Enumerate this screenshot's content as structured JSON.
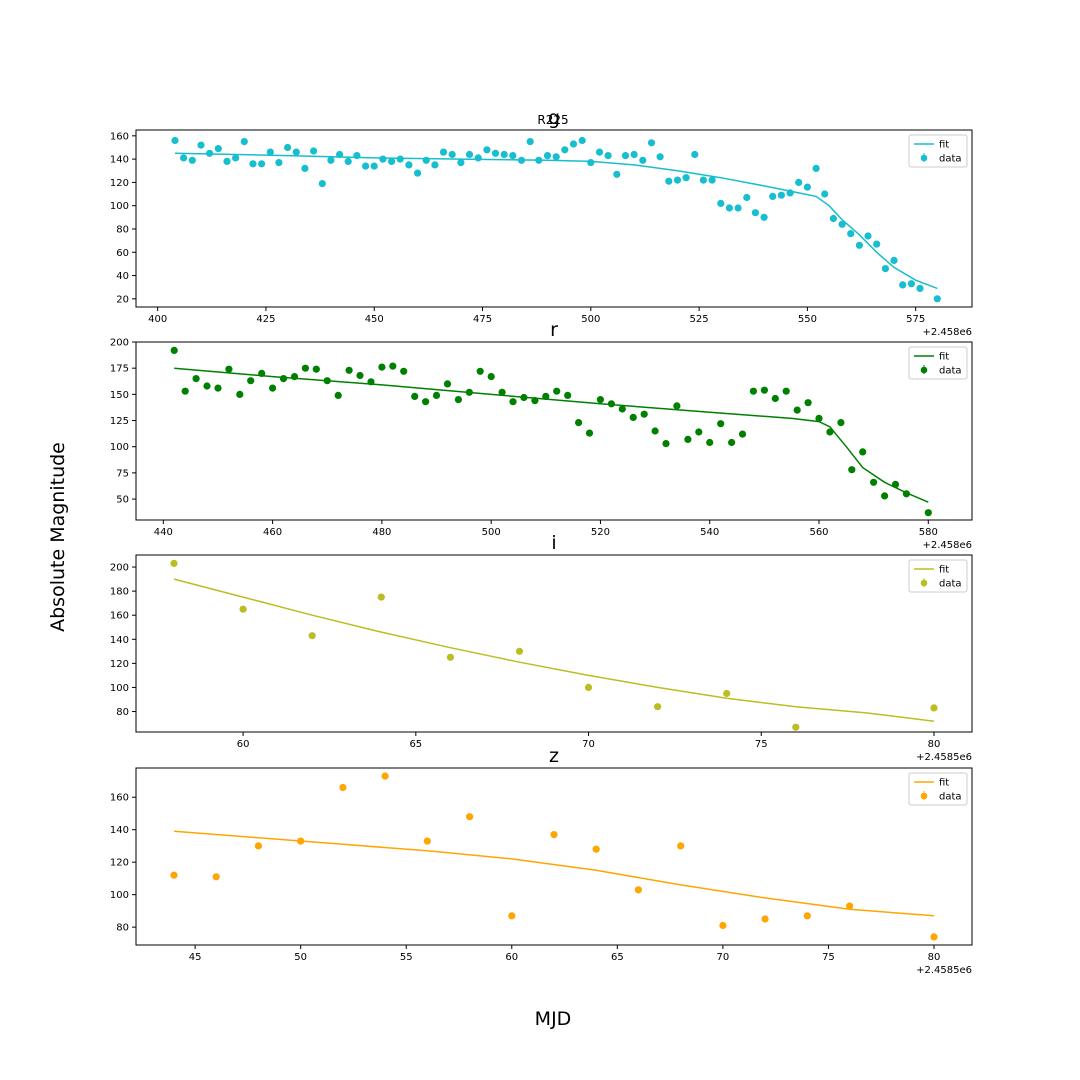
{
  "figure": {
    "suptitle": "R225",
    "xlabel": "MJD",
    "ylabel": "Absolute Magnitude"
  },
  "chart_data": [
    {
      "type": "scatter",
      "title": "g",
      "color": "#17becf",
      "x_offset_label": "+2.458e6",
      "xlim": [
        395,
        588
      ],
      "ylim": [
        13,
        165
      ],
      "xticks": [
        400,
        425,
        450,
        475,
        500,
        525,
        550,
        575
      ],
      "yticks": [
        20,
        40,
        60,
        80,
        100,
        120,
        140,
        160
      ],
      "legend": [
        "fit",
        "data"
      ],
      "legend_position": "upper right",
      "data_points": [
        [
          404,
          156
        ],
        [
          406,
          141
        ],
        [
          408,
          139
        ],
        [
          410,
          152
        ],
        [
          412,
          145
        ],
        [
          414,
          149
        ],
        [
          416,
          138
        ],
        [
          418,
          141
        ],
        [
          420,
          155
        ],
        [
          422,
          136
        ],
        [
          424,
          136
        ],
        [
          426,
          146
        ],
        [
          428,
          137
        ],
        [
          430,
          150
        ],
        [
          432,
          146
        ],
        [
          434,
          132
        ],
        [
          436,
          147
        ],
        [
          438,
          119
        ],
        [
          440,
          139
        ],
        [
          442,
          144
        ],
        [
          444,
          138
        ],
        [
          446,
          143
        ],
        [
          448,
          134
        ],
        [
          450,
          134
        ],
        [
          452,
          140
        ],
        [
          454,
          138
        ],
        [
          456,
          140
        ],
        [
          458,
          135
        ],
        [
          460,
          128
        ],
        [
          462,
          139
        ],
        [
          464,
          135
        ],
        [
          466,
          146
        ],
        [
          468,
          144
        ],
        [
          470,
          137
        ],
        [
          472,
          144
        ],
        [
          474,
          141
        ],
        [
          476,
          148
        ],
        [
          478,
          145
        ],
        [
          480,
          144
        ],
        [
          482,
          143
        ],
        [
          484,
          139
        ],
        [
          486,
          155
        ],
        [
          488,
          139
        ],
        [
          490,
          143
        ],
        [
          492,
          142
        ],
        [
          494,
          148
        ],
        [
          496,
          153
        ],
        [
          498,
          156
        ],
        [
          500,
          137
        ],
        [
          502,
          146
        ],
        [
          504,
          143
        ],
        [
          506,
          127
        ],
        [
          508,
          143
        ],
        [
          510,
          144
        ],
        [
          512,
          139
        ],
        [
          514,
          154
        ],
        [
          516,
          142
        ],
        [
          518,
          121
        ],
        [
          520,
          122
        ],
        [
          522,
          124
        ],
        [
          524,
          144
        ],
        [
          526,
          122
        ],
        [
          528,
          122
        ],
        [
          530,
          102
        ],
        [
          532,
          98
        ],
        [
          534,
          98
        ],
        [
          536,
          107
        ],
        [
          538,
          94
        ],
        [
          540,
          90
        ],
        [
          542,
          108
        ],
        [
          544,
          109
        ],
        [
          546,
          111
        ],
        [
          548,
          120
        ],
        [
          550,
          116
        ],
        [
          552,
          132
        ],
        [
          554,
          110
        ],
        [
          556,
          89
        ],
        [
          558,
          84
        ],
        [
          560,
          76
        ],
        [
          562,
          66
        ],
        [
          564,
          74
        ],
        [
          566,
          67
        ],
        [
          568,
          46
        ],
        [
          570,
          53
        ],
        [
          572,
          32
        ],
        [
          574,
          33
        ],
        [
          576,
          29
        ],
        [
          580,
          20
        ]
      ],
      "fit_line": [
        [
          404,
          145
        ],
        [
          430,
          143
        ],
        [
          450,
          141
        ],
        [
          470,
          140
        ],
        [
          490,
          139
        ],
        [
          500,
          138
        ],
        [
          510,
          135
        ],
        [
          520,
          130
        ],
        [
          530,
          124
        ],
        [
          540,
          117
        ],
        [
          548,
          111
        ],
        [
          552,
          108
        ],
        [
          555,
          100
        ],
        [
          558,
          88
        ],
        [
          562,
          75
        ],
        [
          566,
          60
        ],
        [
          570,
          47
        ],
        [
          575,
          36
        ],
        [
          580,
          29
        ]
      ]
    },
    {
      "type": "scatter",
      "title": "r",
      "color": "#008000",
      "x_offset_label": "+2.458e6",
      "xlim": [
        435,
        588
      ],
      "ylim": [
        30,
        200
      ],
      "xticks": [
        440,
        460,
        480,
        500,
        520,
        540,
        560,
        580
      ],
      "yticks": [
        50,
        75,
        100,
        125,
        150,
        175,
        200
      ],
      "legend": [
        "fit",
        "data"
      ],
      "legend_position": "upper right",
      "data_points": [
        [
          442,
          192
        ],
        [
          444,
          153
        ],
        [
          446,
          165
        ],
        [
          448,
          158
        ],
        [
          450,
          156
        ],
        [
          452,
          174
        ],
        [
          454,
          150
        ],
        [
          456,
          163
        ],
        [
          458,
          170
        ],
        [
          460,
          156
        ],
        [
          462,
          165
        ],
        [
          464,
          167
        ],
        [
          466,
          175
        ],
        [
          468,
          174
        ],
        [
          470,
          163
        ],
        [
          472,
          149
        ],
        [
          474,
          173
        ],
        [
          476,
          168
        ],
        [
          478,
          162
        ],
        [
          480,
          176
        ],
        [
          482,
          177
        ],
        [
          484,
          172
        ],
        [
          486,
          148
        ],
        [
          488,
          143
        ],
        [
          490,
          149
        ],
        [
          492,
          160
        ],
        [
          494,
          145
        ],
        [
          496,
          152
        ],
        [
          498,
          172
        ],
        [
          500,
          167
        ],
        [
          502,
          152
        ],
        [
          504,
          143
        ],
        [
          506,
          147
        ],
        [
          508,
          144
        ],
        [
          510,
          148
        ],
        [
          512,
          153
        ],
        [
          514,
          149
        ],
        [
          516,
          123
        ],
        [
          518,
          113
        ],
        [
          520,
          145
        ],
        [
          522,
          141
        ],
        [
          524,
          136
        ],
        [
          526,
          128
        ],
        [
          528,
          131
        ],
        [
          530,
          115
        ],
        [
          532,
          103
        ],
        [
          534,
          139
        ],
        [
          536,
          107
        ],
        [
          538,
          114
        ],
        [
          540,
          104
        ],
        [
          542,
          122
        ],
        [
          544,
          104
        ],
        [
          546,
          112
        ],
        [
          548,
          153
        ],
        [
          550,
          154
        ],
        [
          552,
          146
        ],
        [
          554,
          153
        ],
        [
          556,
          135
        ],
        [
          558,
          142
        ],
        [
          560,
          127
        ],
        [
          562,
          114
        ],
        [
          564,
          123
        ],
        [
          566,
          78
        ],
        [
          568,
          95
        ],
        [
          570,
          66
        ],
        [
          572,
          53
        ],
        [
          574,
          64
        ],
        [
          576,
          55
        ],
        [
          580,
          37
        ]
      ],
      "fit_line": [
        [
          442,
          175
        ],
        [
          460,
          167
        ],
        [
          480,
          159
        ],
        [
          500,
          150
        ],
        [
          520,
          141
        ],
        [
          540,
          133
        ],
        [
          555,
          127
        ],
        [
          560,
          124
        ],
        [
          562,
          119
        ],
        [
          565,
          100
        ],
        [
          568,
          80
        ],
        [
          572,
          66
        ],
        [
          576,
          56
        ],
        [
          580,
          47
        ]
      ]
    },
    {
      "type": "scatter",
      "title": "i",
      "color": "#bcbd22",
      "x_offset_label": "+2.4585e6",
      "xlim": [
        56.9,
        81.1
      ],
      "ylim": [
        63,
        210
      ],
      "xticks": [
        60,
        65,
        70,
        75,
        80
      ],
      "yticks": [
        80,
        100,
        120,
        140,
        160,
        180,
        200
      ],
      "legend": [
        "fit",
        "data"
      ],
      "legend_position": "upper right",
      "data_points": [
        [
          58,
          203
        ],
        [
          60,
          165
        ],
        [
          62,
          143
        ],
        [
          64,
          175
        ],
        [
          66,
          125
        ],
        [
          68,
          130
        ],
        [
          70,
          100
        ],
        [
          72,
          84
        ],
        [
          74,
          95
        ],
        [
          76,
          67
        ],
        [
          80,
          83
        ]
      ],
      "fit_line": [
        [
          58,
          190
        ],
        [
          60,
          175
        ],
        [
          62,
          160
        ],
        [
          64,
          146
        ],
        [
          66,
          133
        ],
        [
          68,
          121
        ],
        [
          70,
          110
        ],
        [
          72,
          100
        ],
        [
          74,
          91
        ],
        [
          76,
          84
        ],
        [
          78,
          79
        ],
        [
          80,
          72
        ]
      ]
    },
    {
      "type": "scatter",
      "title": "z",
      "color": "#ffa500",
      "x_offset_label": "+2.4585e6",
      "xlim": [
        42.2,
        81.8
      ],
      "ylim": [
        69,
        178
      ],
      "xticks": [
        45,
        50,
        55,
        60,
        65,
        70,
        75,
        80
      ],
      "yticks": [
        80,
        100,
        120,
        140,
        160
      ],
      "legend": [
        "fit",
        "data"
      ],
      "legend_position": "upper right",
      "data_points": [
        [
          44,
          112
        ],
        [
          46,
          111
        ],
        [
          48,
          130
        ],
        [
          50,
          133
        ],
        [
          52,
          166
        ],
        [
          54,
          173
        ],
        [
          56,
          133
        ],
        [
          58,
          148
        ],
        [
          60,
          87
        ],
        [
          62,
          137
        ],
        [
          64,
          128
        ],
        [
          66,
          103
        ],
        [
          68,
          130
        ],
        [
          70,
          81
        ],
        [
          72,
          85
        ],
        [
          74,
          87
        ],
        [
          76,
          93
        ],
        [
          80,
          74
        ]
      ],
      "fit_line": [
        [
          44,
          139
        ],
        [
          48,
          135
        ],
        [
          52,
          131
        ],
        [
          56,
          127
        ],
        [
          60,
          122
        ],
        [
          64,
          115
        ],
        [
          68,
          106
        ],
        [
          72,
          98
        ],
        [
          76,
          91
        ],
        [
          80,
          87
        ]
      ]
    }
  ]
}
